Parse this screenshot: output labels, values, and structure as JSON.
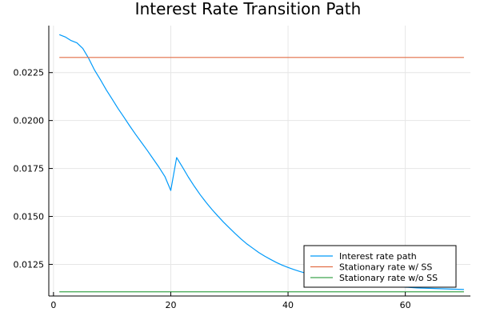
{
  "chart_data": {
    "type": "line",
    "title": "Interest Rate Transition Path",
    "xlabel": "",
    "ylabel": "",
    "xlim": [
      -0.8,
      71.1
    ],
    "ylim": [
      0.01085,
      0.02495
    ],
    "xticks": [
      0,
      20,
      40,
      60
    ],
    "xtick_labels": [
      "0",
      "20",
      "40",
      "60"
    ],
    "yticks": [
      0.0125,
      0.015,
      0.0175,
      0.02,
      0.0225
    ],
    "ytick_labels": [
      "0.0125",
      "0.0150",
      "0.0175",
      "0.0200",
      "0.0225"
    ],
    "grid": true,
    "legend_position": "bottom-right",
    "series": [
      {
        "name": "Interest rate path",
        "color": "#009AFA",
        "x": [
          1,
          2,
          3,
          4,
          5,
          6,
          7,
          8,
          9,
          10,
          11,
          12,
          13,
          14,
          15,
          16,
          17,
          18,
          19,
          20,
          21,
          22,
          23,
          24,
          25,
          26,
          27,
          28,
          29,
          30,
          31,
          32,
          33,
          34,
          35,
          36,
          37,
          38,
          39,
          40,
          41,
          42,
          43,
          44,
          45,
          46,
          47,
          48,
          49,
          50,
          51,
          52,
          53,
          54,
          55,
          56,
          57,
          58,
          59,
          60,
          61,
          62,
          63,
          64,
          65,
          66,
          67,
          68,
          69,
          70
        ],
        "y": [
          0.02448,
          0.02436,
          0.02417,
          0.02405,
          0.02376,
          0.02324,
          0.02263,
          0.02213,
          0.0216,
          0.02112,
          0.02063,
          0.02018,
          0.01972,
          0.01928,
          0.01886,
          0.01844,
          0.018,
          0.01756,
          0.01708,
          0.01635,
          0.01807,
          0.01757,
          0.01705,
          0.01658,
          0.01614,
          0.01574,
          0.01537,
          0.01503,
          0.0147,
          0.0144,
          0.0141,
          0.01382,
          0.01356,
          0.01334,
          0.01312,
          0.01293,
          0.01276,
          0.0126,
          0.01246,
          0.01234,
          0.01223,
          0.01213,
          0.01204,
          0.01196,
          0.01189,
          0.01182,
          0.01176,
          0.0117,
          0.01165,
          0.0116,
          0.01156,
          0.01152,
          0.01148,
          0.01145,
          0.01142,
          0.01139,
          0.01137,
          0.01135,
          0.01133,
          0.01131,
          0.01129,
          0.01127,
          0.01126,
          0.01125,
          0.01124,
          0.01123,
          0.01122,
          0.01121,
          0.0112,
          0.01119
        ]
      },
      {
        "name": "Stationary rate w/ SS",
        "color": "#E26F46",
        "x": [
          1,
          70
        ],
        "y": [
          0.02329,
          0.02329
        ]
      },
      {
        "name": "Stationary rate w/o SS",
        "color": "#3DA44D",
        "x": [
          1,
          70
        ],
        "y": [
          0.01107,
          0.01107
        ]
      }
    ]
  }
}
